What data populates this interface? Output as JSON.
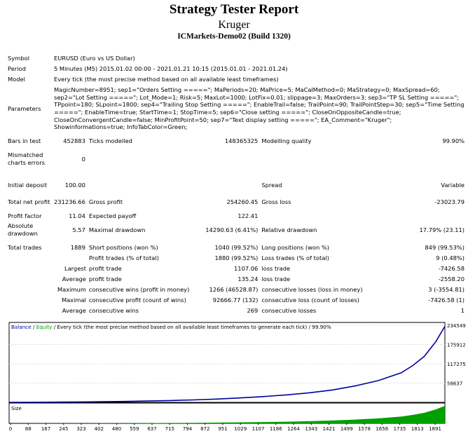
{
  "header": {
    "title": "Strategy Tester Report",
    "expert": "Kruger",
    "server": "ICMarkets-Demo02 (Build 1320)"
  },
  "info": {
    "symbol_label": "Symbol",
    "symbol": "EURUSD (Euro vs US Dollar)",
    "period_label": "Period",
    "period": "5 Minutes (M5) 2015.01.02 00:00 - 2021.01.21 10:15 (2015.01.01 - 2021.01.24)",
    "model_label": "Model",
    "model": "Every tick (the most precise method based on all available least timeframes)",
    "parameters_label": "Parameters",
    "parameters": "MagicNumber=8951; sep1=\"Orders Setting =====\"; MaPeriods=20; MaPrice=5; MaCalMethod=0; MaStrategy=0; MaxSpread=60; sep2=\"Lot Setting =====\"; Lot_Mode=1; Risk=5; MaxLot=1000; LotFix=0.01; slippage=3; MaxOrders=3; sep3=\"TP SL Setting =====\"; TPpoint=180; SLpoint=1800; sep4=\"Trailing Stop Setting =====\"; EnableTrail=false; TrailPoint=90; TrailPointStep=30; sep5=\"Time Setting =====\"; EnableTime=true; StartTime=1; StopTime=5; sep6=\"Close setting =====\"; CloseOnOppositeCandle=true; CloseOnConvergentCandle=false; MinProfitPoint=50; sep7=\"Text display setting =====\"; EA_Comment=\"Kruger\"; Showinformations=true; InfoTabColor=Green;"
  },
  "stats": {
    "bars_label": "Bars in test",
    "bars": "452883",
    "ticks_label": "Ticks modelled",
    "ticks": "148365325",
    "quality_label": "Modelling quality",
    "quality": "99.90%",
    "mismatched_label": "Mismatched charts errors",
    "mismatched": "0",
    "deposit_label": "Initial deposit",
    "deposit": "100.00",
    "spread_label": "Spread",
    "spread": "Variable",
    "netprofit_label": "Total net profit",
    "netprofit": "231236.66",
    "grossprofit_label": "Gross profit",
    "grossprofit": "254260.45",
    "grossloss_label": "Gross loss",
    "grossloss": "-23023.79",
    "pf_label": "Profit factor",
    "pf": "11.04",
    "payoff_label": "Expected payoff",
    "payoff": "122.41",
    "absdd_label": "Absolute drawdown",
    "absdd": "5.57",
    "maxdd_label": "Maximal drawdown",
    "maxdd": "14290.63 (6.41%)",
    "reldd_label": "Relative drawdown",
    "reldd": "17.79% (23.11)",
    "trades_label": "Total trades",
    "trades": "1889",
    "short_label": "Short positions (won %)",
    "short": "1040 (99.52%)",
    "long_label": "Long positions (won %)",
    "long": "849 (99.53%)",
    "profitt_label": "Profit trades (% of total)",
    "profitt": "1880 (99.52%)",
    "losst_label": "Loss trades (% of total)",
    "losst": "9 (0.48%)",
    "largest_label": "Largest",
    "largest_pt_label": "profit trade",
    "largest_pt": "1107.06",
    "largest_lt_label": "loss trade",
    "largest_lt": "-7426.58",
    "average_label": "Average",
    "average_pt_label": "profit trade",
    "average_pt": "135.24",
    "average_lt_label": "loss trade",
    "average_lt": "-2558.20",
    "maximum_label": "Maximum",
    "max_cw_label": "consecutive wins (profit in money)",
    "max_cw": "1266 (46528.87)",
    "max_cl_label": "consecutive losses (loss in money)",
    "max_cl": "3 (-3554.81)",
    "maximal_label": "Maximal",
    "maxl_cp_label": "consecutive profit (count of wins)",
    "maxl_cp": "92666.77 (132)",
    "maxl_cl_label": "consecutive loss (count of losses)",
    "maxl_cl": "-7426.58 (1)",
    "avg2_label": "Average",
    "avg_cw_label": "consecutive wins",
    "avg_cw": "269",
    "avg_cl_label": "consecutive losses",
    "avg_cl": "1"
  },
  "chart_data": {
    "type": "line",
    "legend": {
      "balance": "Balance",
      "slash": "/",
      "equity": "Equity",
      "rest": "/ Every tick (the most precise method based on all available least timeframes to generate each tick) / 99.90%"
    },
    "size_label": "Size",
    "colors": {
      "balance": "#0000a0",
      "equity": "#00a000",
      "size": "#00a000",
      "grid": "#cccccc"
    },
    "x_ticks": [
      "0",
      "88",
      "167",
      "245",
      "323",
      "402",
      "480",
      "559",
      "637",
      "715",
      "794",
      "872",
      "951",
      "1029",
      "1107",
      "1186",
      "1264",
      "1343",
      "1421",
      "1499",
      "1578",
      "1656",
      "1735",
      "1813",
      "1891"
    ],
    "y_ticks": [
      "234549",
      "175912",
      "117275",
      "58637"
    ],
    "xlim": [
      0,
      1889
    ],
    "ylim": [
      0,
      234549
    ],
    "x": [
      0,
      100,
      200,
      300,
      400,
      500,
      600,
      700,
      800,
      900,
      1000,
      1100,
      1200,
      1300,
      1400,
      1500,
      1600,
      1700,
      1750,
      1800,
      1850,
      1889
    ],
    "balance": [
      100,
      300,
      700,
      1200,
      1900,
      2800,
      4000,
      5500,
      7500,
      10000,
      13500,
      17500,
      22500,
      29000,
      37500,
      50000,
      66000,
      90000,
      112000,
      140000,
      185000,
      231337
    ]
  }
}
